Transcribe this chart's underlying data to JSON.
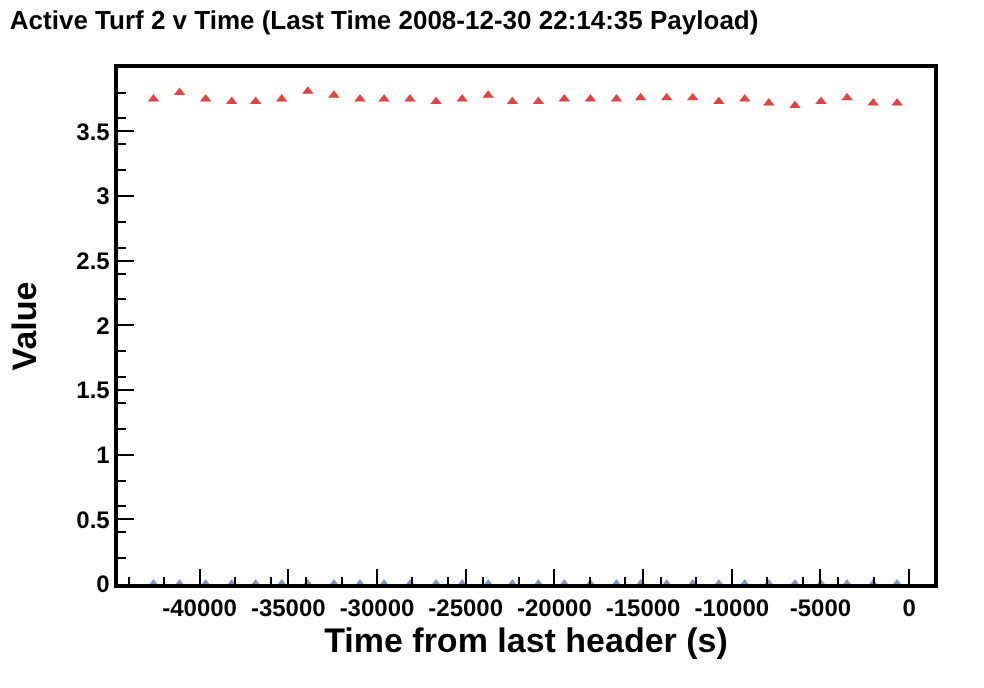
{
  "chart_data": {
    "type": "scatter",
    "title": "Active Turf 2 v Time (Last Time 2008-12-30 22:14:35 Payload)",
    "xlabel": "Time from last header (s)",
    "ylabel": "Value",
    "x": [
      -42600,
      -41130,
      -39660,
      -38190,
      -36840,
      -35370,
      -33900,
      -32430,
      -30960,
      -29600,
      -28140,
      -26670,
      -25200,
      -23730,
      -22370,
      -20900,
      -19440,
      -17970,
      -16500,
      -15140,
      -13670,
      -12200,
      -10730,
      -9270,
      -7910,
      -6440,
      -4970,
      -3500,
      -2030,
      -680
    ],
    "series": [
      {
        "color": "#dd4444",
        "values": [
          3.75,
          3.8,
          3.75,
          3.73,
          3.73,
          3.75,
          3.81,
          3.78,
          3.75,
          3.75,
          3.75,
          3.73,
          3.75,
          3.78,
          3.73,
          3.73,
          3.75,
          3.75,
          3.75,
          3.76,
          3.76,
          3.76,
          3.73,
          3.75,
          3.72,
          3.7,
          3.73,
          3.76,
          3.72,
          3.72
        ]
      },
      {
        "color": "#7799cc",
        "values": [
          0,
          0,
          0,
          0,
          0,
          0,
          0,
          0,
          0,
          0,
          0,
          0,
          0,
          0,
          0,
          0,
          0,
          0,
          0,
          0,
          0,
          0,
          0,
          0,
          0,
          0,
          0,
          0,
          0,
          0
        ]
      }
    ],
    "marker": "triangle",
    "xlim": [
      -44600,
      1400
    ],
    "ylim": [
      0,
      3.99
    ],
    "xticks": [
      -40000,
      -35000,
      -30000,
      -25000,
      -20000,
      -15000,
      -10000,
      -5000,
      0
    ],
    "yticks": [
      0,
      0.5,
      1,
      1.5,
      2,
      2.5,
      3,
      3.5
    ]
  }
}
